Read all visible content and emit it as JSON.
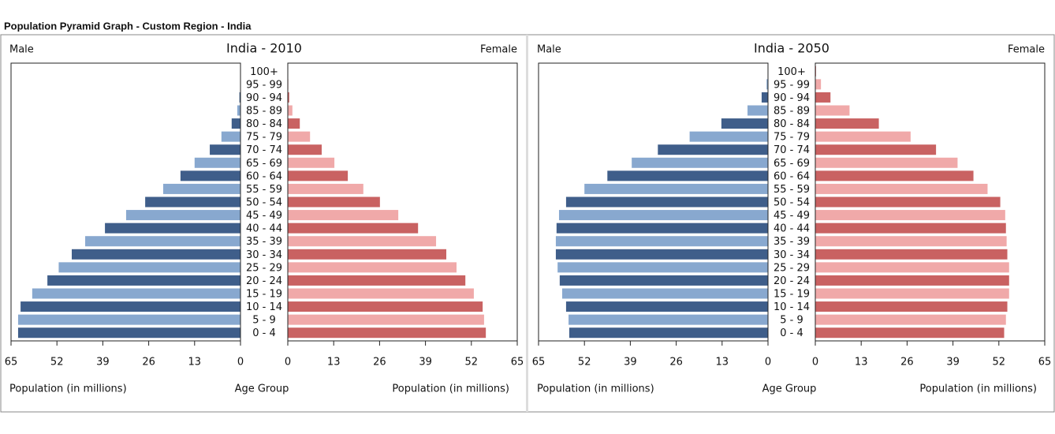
{
  "header": {
    "title": "Population Pyramid Graph - Custom Region - India"
  },
  "chart_data": [
    {
      "type": "pyramid",
      "title": "India - 2010",
      "left_label": "Male",
      "right_label": "Female",
      "x_label": "Population (in millions)",
      "center_label": "Age Group",
      "categories": [
        "0 - 4",
        "5 - 9",
        "10 - 14",
        "15 - 19",
        "20 - 24",
        "25 - 29",
        "30 - 34",
        "35 - 39",
        "40 - 44",
        "45 - 49",
        "50 - 54",
        "55 - 59",
        "60 - 64",
        "65 - 69",
        "70 - 74",
        "75 - 79",
        "80 - 84",
        "85 - 89",
        "90 - 94",
        "95 - 99",
        "100+"
      ],
      "series": [
        {
          "name": "Male",
          "side": "left",
          "colors": [
            "#3f5e8a",
            "#88a8cf"
          ],
          "values": [
            63.0,
            63.0,
            62.3,
            59.0,
            54.7,
            51.5,
            47.8,
            44.0,
            38.4,
            32.4,
            27.0,
            21.9,
            17.0,
            13.0,
            8.7,
            5.4,
            2.5,
            0.9,
            0.3,
            0.1,
            0.05
          ]
        },
        {
          "name": "Female",
          "side": "right",
          "colors": [
            "#c96262",
            "#f0a9a9"
          ],
          "values": [
            56.1,
            55.6,
            55.2,
            52.7,
            50.3,
            47.8,
            44.9,
            42.0,
            36.9,
            31.3,
            26.1,
            21.4,
            17.0,
            13.2,
            9.6,
            6.3,
            3.4,
            1.3,
            0.4,
            0.15,
            0.05
          ]
        }
      ],
      "xlim": [
        0,
        65
      ],
      "xticks": [
        0,
        13,
        26,
        39,
        52,
        65
      ]
    },
    {
      "type": "pyramid",
      "title": "India - 2050",
      "left_label": "Male",
      "right_label": "Female",
      "x_label": "Population (in millions)",
      "center_label": "Age Group",
      "categories": [
        "0 - 4",
        "5 - 9",
        "10 - 14",
        "15 - 19",
        "20 - 24",
        "25 - 29",
        "30 - 34",
        "35 - 39",
        "40 - 44",
        "45 - 49",
        "50 - 54",
        "55 - 59",
        "60 - 64",
        "65 - 69",
        "70 - 74",
        "75 - 79",
        "80 - 84",
        "85 - 89",
        "90 - 94",
        "95 - 99",
        "100+"
      ],
      "series": [
        {
          "name": "Male",
          "side": "left",
          "colors": [
            "#3f5e8a",
            "#88a8cf"
          ],
          "values": [
            56.3,
            56.5,
            57.2,
            58.3,
            59.0,
            59.6,
            60.1,
            60.1,
            59.9,
            59.2,
            57.2,
            52.0,
            45.5,
            38.6,
            31.2,
            22.2,
            13.2,
            5.8,
            1.8,
            0.4,
            0.05
          ]
        },
        {
          "name": "Female",
          "side": "right",
          "colors": [
            "#c96262",
            "#f0a9a9"
          ],
          "values": [
            53.5,
            54.0,
            54.4,
            54.9,
            54.9,
            54.9,
            54.4,
            54.2,
            54.0,
            53.8,
            52.4,
            48.8,
            44.8,
            40.3,
            34.2,
            27.0,
            18.0,
            9.7,
            4.3,
            1.6,
            0.2
          ]
        }
      ],
      "xlim": [
        0,
        65
      ],
      "xticks": [
        0,
        13,
        26,
        39,
        52,
        65
      ]
    }
  ]
}
